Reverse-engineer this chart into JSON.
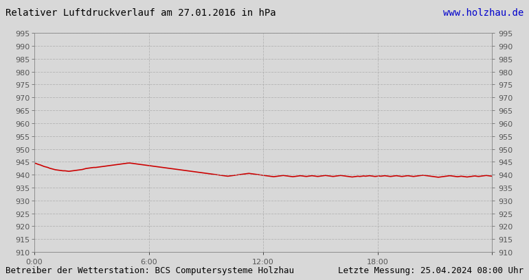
{
  "title": "Relativer Luftdruckverlauf am 27.01.2016 in hPa",
  "url_text": "www.holzhau.de",
  "footer_left": "Betreiber der Wetterstation: BCS Computersysteme Holzhau",
  "footer_right": "Letzte Messung: 25.04.2024 08:00 Uhr",
  "ylim": [
    910,
    995
  ],
  "ytick_step": 5,
  "xlim": [
    0,
    1440
  ],
  "xtick_positions": [
    0,
    360,
    720,
    1080,
    1440
  ],
  "xtick_labels": [
    "0:00",
    "6:00",
    "12:00",
    "18:00",
    ""
  ],
  "grid_color": "#aaaaaa",
  "bg_color": "#d8d8d8",
  "line_color": "#cc0000",
  "title_color": "#000000",
  "url_color": "#0000cc",
  "footer_color": "#000000",
  "pressure_values": [
    944.5,
    944.3,
    944.0,
    943.8,
    943.5,
    943.2,
    943.0,
    942.8,
    942.5,
    942.3,
    942.1,
    941.9,
    941.8,
    941.7,
    941.6,
    941.5,
    941.5,
    941.4,
    941.3,
    941.4,
    941.5,
    941.6,
    941.7,
    941.8,
    941.9,
    942.0,
    942.2,
    942.4,
    942.5,
    942.6,
    942.7,
    942.8,
    942.8,
    942.9,
    943.0,
    943.1,
    943.2,
    943.3,
    943.4,
    943.5,
    943.6,
    943.7,
    943.8,
    943.9,
    944.0,
    944.1,
    944.2,
    944.3,
    944.4,
    944.5,
    944.5,
    944.4,
    944.3,
    944.2,
    944.1,
    944.0,
    943.9,
    943.8,
    943.7,
    943.6,
    943.5,
    943.4,
    943.3,
    943.2,
    943.1,
    943.0,
    942.9,
    942.8,
    942.7,
    942.6,
    942.5,
    942.4,
    942.3,
    942.2,
    942.1,
    942.0,
    941.9,
    941.8,
    941.7,
    941.6,
    941.5,
    941.4,
    941.3,
    941.2,
    941.1,
    941.0,
    940.9,
    940.8,
    940.7,
    940.6,
    940.5,
    940.4,
    940.3,
    940.2,
    940.1,
    940.0,
    939.9,
    939.8,
    939.7,
    939.6,
    939.5,
    939.4,
    939.5,
    939.6,
    939.7,
    939.8,
    939.9,
    940.0,
    940.1,
    940.2,
    940.3,
    940.4,
    940.5,
    940.4,
    940.3,
    940.2,
    940.1,
    940.0,
    939.9,
    939.8,
    939.7,
    939.6,
    939.5,
    939.4,
    939.3,
    939.2,
    939.3,
    939.4,
    939.5,
    939.6,
    939.7,
    939.6,
    939.5,
    939.4,
    939.3,
    939.2,
    939.3,
    939.4,
    939.5,
    939.6,
    939.5,
    939.4,
    939.3,
    939.4,
    939.5,
    939.6,
    939.5,
    939.4,
    939.3,
    939.4,
    939.5,
    939.6,
    939.7,
    939.6,
    939.5,
    939.4,
    939.3,
    939.4,
    939.5,
    939.6,
    939.7,
    939.6,
    939.5,
    939.4,
    939.3,
    939.2,
    939.1,
    939.2,
    939.3,
    939.4,
    939.3,
    939.4,
    939.5,
    939.4,
    939.5,
    939.6,
    939.5,
    939.4,
    939.3,
    939.4,
    939.5,
    939.4,
    939.5,
    939.6,
    939.5,
    939.4,
    939.3,
    939.4,
    939.5,
    939.6,
    939.5,
    939.4,
    939.3,
    939.4,
    939.5,
    939.6,
    939.5,
    939.4,
    939.3,
    939.4,
    939.5,
    939.6,
    939.7,
    939.8,
    939.7,
    939.6,
    939.5,
    939.4,
    939.3,
    939.2,
    939.1,
    939.0,
    939.1,
    939.2,
    939.3,
    939.4,
    939.5,
    939.6,
    939.5,
    939.4,
    939.3,
    939.2,
    939.3,
    939.4,
    939.3,
    939.2,
    939.1,
    939.2,
    939.3,
    939.4,
    939.5,
    939.4,
    939.3,
    939.4,
    939.5,
    939.6,
    939.7,
    939.6,
    939.5,
    939.4
  ]
}
